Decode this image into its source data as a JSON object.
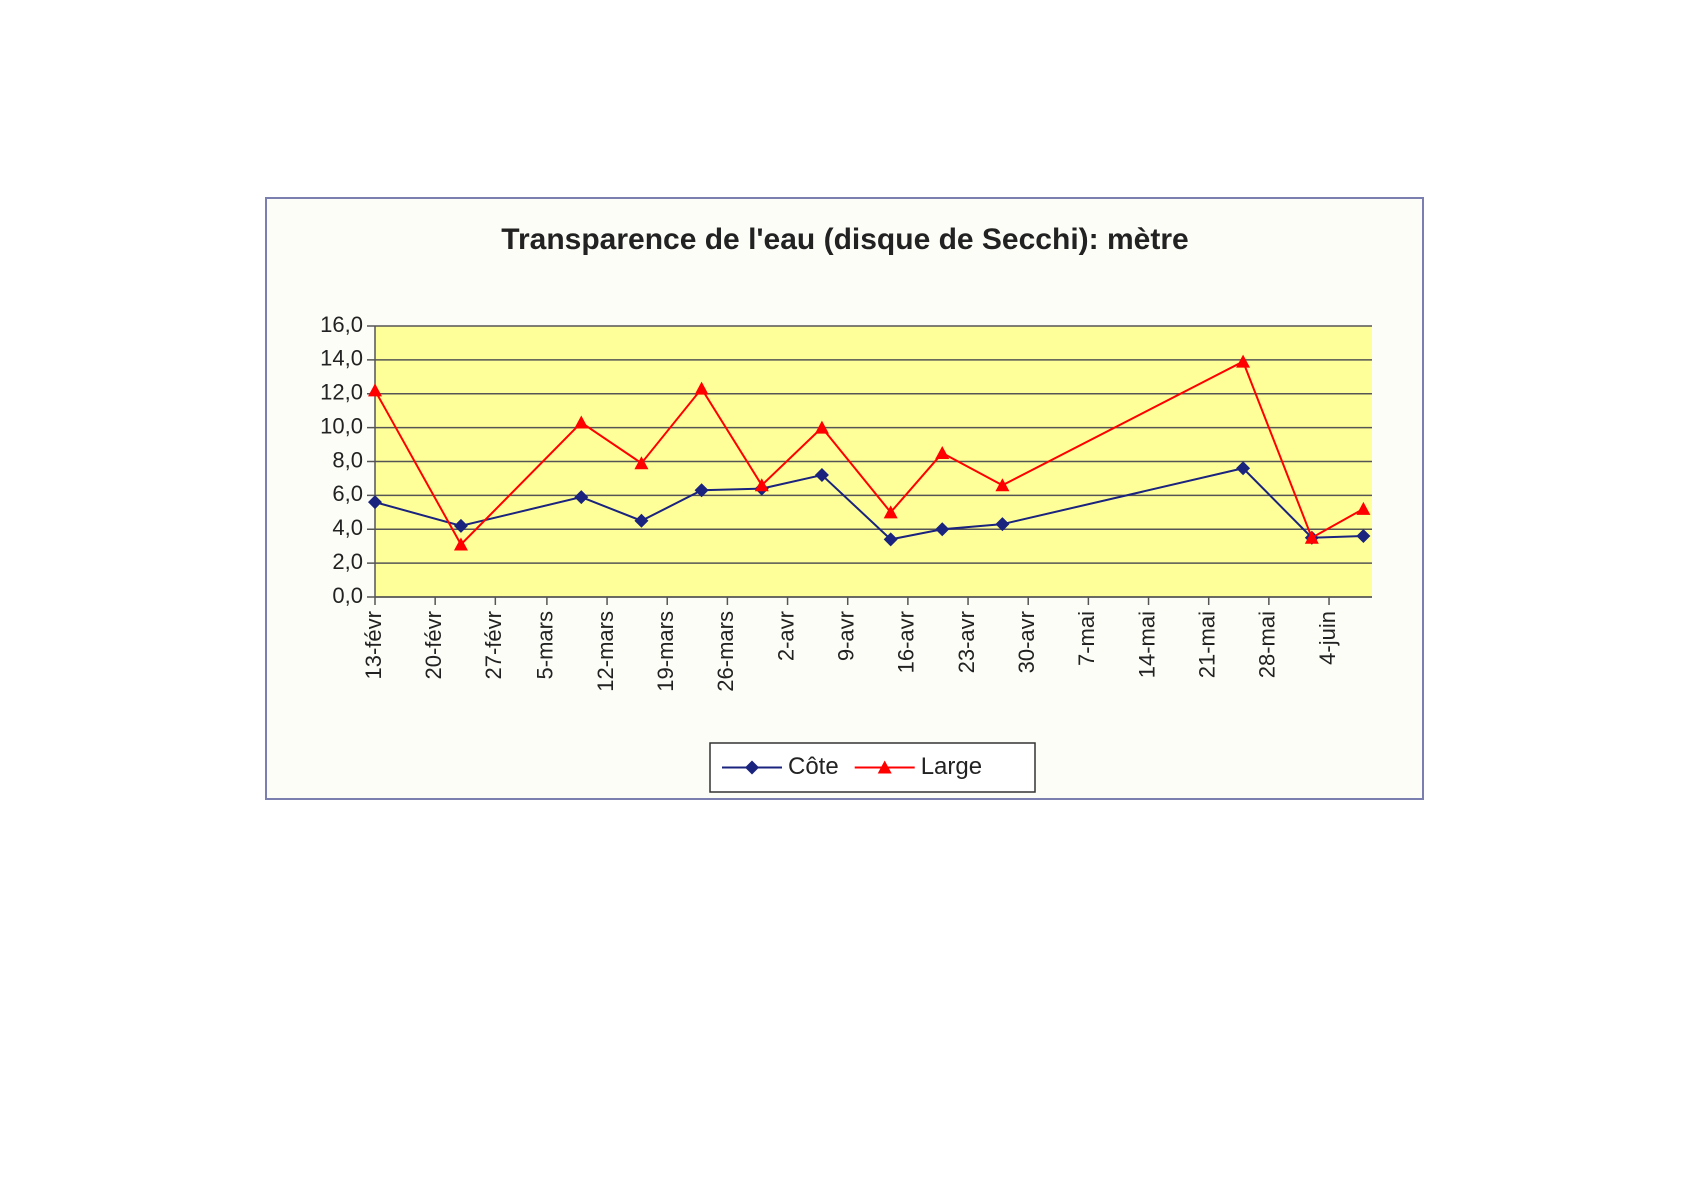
{
  "chart_data": {
    "type": "line",
    "title": "Transparence de l'eau (disque de Secchi): mètre",
    "x": [
      44,
      54,
      68,
      75,
      82,
      89,
      96,
      104,
      110,
      117,
      145,
      153,
      159
    ],
    "series": [
      {
        "name": "Côte",
        "color": "#1a237e",
        "marker": "diamond",
        "values": [
          5.6,
          4.2,
          5.9,
          4.5,
          6.3,
          6.4,
          7.2,
          3.4,
          4.0,
          4.3,
          7.6,
          3.5,
          3.6
        ]
      },
      {
        "name": "Large",
        "color": "#ff0000",
        "marker": "triangle",
        "values": [
          12.2,
          3.1,
          10.3,
          7.9,
          12.3,
          6.6,
          10.0,
          5.0,
          8.5,
          6.6,
          13.9,
          3.5,
          5.2
        ]
      }
    ],
    "xlim": [
      44,
      160
    ],
    "xticks": [
      {
        "value": 44,
        "label": "13-févr"
      },
      {
        "value": 51,
        "label": "20-févr"
      },
      {
        "value": 58,
        "label": "27-févr"
      },
      {
        "value": 64,
        "label": "5-mars"
      },
      {
        "value": 71,
        "label": "12-mars"
      },
      {
        "value": 78,
        "label": "19-mars"
      },
      {
        "value": 85,
        "label": "26-mars"
      },
      {
        "value": 92,
        "label": "2-avr"
      },
      {
        "value": 99,
        "label": "9-avr"
      },
      {
        "value": 106,
        "label": "16-avr"
      },
      {
        "value": 113,
        "label": "23-avr"
      },
      {
        "value": 120,
        "label": "30-avr"
      },
      {
        "value": 127,
        "label": "7-mai"
      },
      {
        "value": 134,
        "label": "14-mai"
      },
      {
        "value": 141,
        "label": "21-mai"
      },
      {
        "value": 148,
        "label": "28-mai"
      },
      {
        "value": 155,
        "label": "4-juin"
      }
    ],
    "ylim": [
      0,
      16
    ],
    "yticks": [
      {
        "value": 0,
        "label": "0,0"
      },
      {
        "value": 2,
        "label": "2,0"
      },
      {
        "value": 4,
        "label": "4,0"
      },
      {
        "value": 6,
        "label": "6,0"
      },
      {
        "value": 8,
        "label": "8,0"
      },
      {
        "value": 10,
        "label": "10,0"
      },
      {
        "value": 12,
        "label": "12,0"
      },
      {
        "value": 14,
        "label": "14,0"
      },
      {
        "value": 16,
        "label": "16,0"
      }
    ],
    "grid": true,
    "plot_background": "#ffff99",
    "legend": "bottom"
  }
}
